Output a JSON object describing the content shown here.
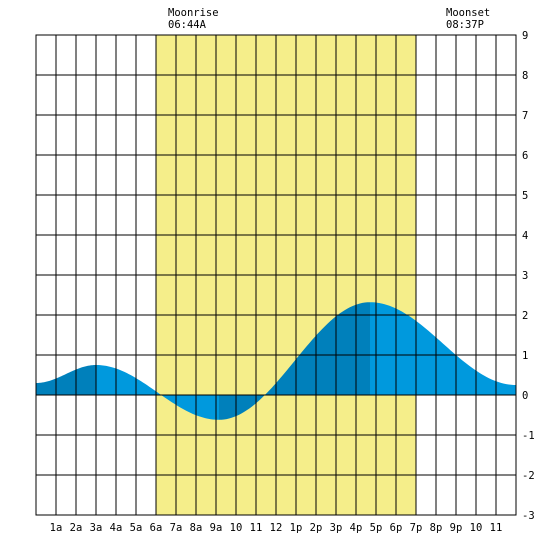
{
  "chart_data": {
    "type": "area",
    "title": "",
    "xlabel": "",
    "ylabel": "",
    "x_tick_labels": [
      "1a",
      "2a",
      "3a",
      "4a",
      "5a",
      "6a",
      "7a",
      "8a",
      "9a",
      "10",
      "11",
      "12",
      "1p",
      "2p",
      "3p",
      "4p",
      "5p",
      "6p",
      "7p",
      "8p",
      "9p",
      "10",
      "11"
    ],
    "x_tick_hours": [
      1,
      2,
      3,
      4,
      5,
      6,
      7,
      8,
      9,
      10,
      11,
      12,
      13,
      14,
      15,
      16,
      17,
      18,
      19,
      20,
      21,
      22,
      23
    ],
    "xlim": [
      0,
      24
    ],
    "ylim": [
      -3,
      9
    ],
    "y_ticks": [
      -3,
      -2,
      -1,
      0,
      1,
      2,
      3,
      4,
      5,
      6,
      7,
      8,
      9
    ],
    "y_tick_labels": [
      "-3",
      "-2",
      "-1",
      "0",
      "1",
      "2",
      "3",
      "4",
      "5",
      "6",
      "7",
      "8",
      "9"
    ],
    "grid": true,
    "daylight_hours": [
      6,
      19
    ],
    "tide_extremes": [
      {
        "hour": 0,
        "value": 0.3
      },
      {
        "hour": 3,
        "value": 0.75
      },
      {
        "hour": 9.15,
        "value": -0.62
      },
      {
        "hour": 16.7,
        "value": 2.32
      },
      {
        "hour": 24,
        "value": 0.25
      }
    ],
    "annotations": {
      "moonrise": {
        "label": "Moonrise",
        "time": "06:44A",
        "hour": 6.73
      },
      "moonset": {
        "label": "Moonset",
        "time": "08:37P",
        "hour": 20.62
      }
    },
    "colors": {
      "grid": "#000000",
      "daylight": "#f5ee8a",
      "tide_light": "#0099dd",
      "tide_dark": "#0080bb"
    }
  }
}
